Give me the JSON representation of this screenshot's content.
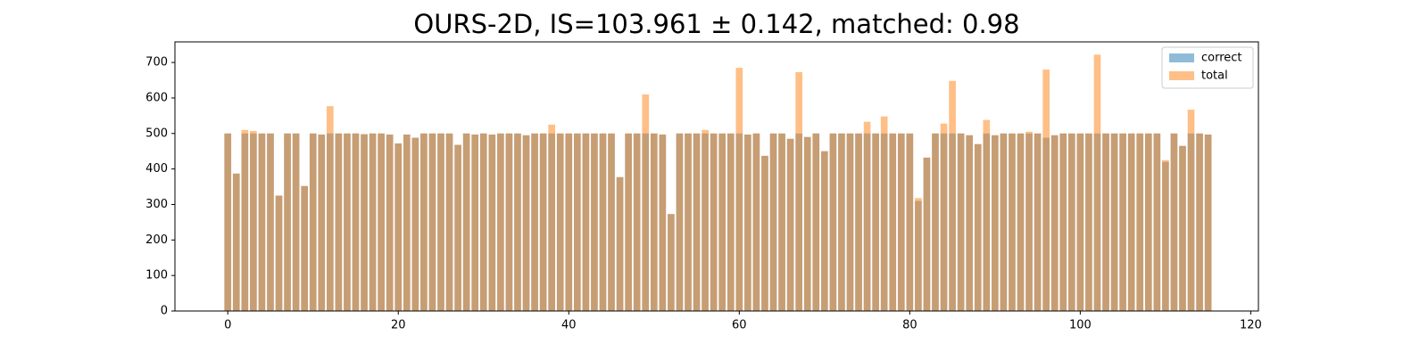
{
  "chart_data": {
    "type": "bar",
    "title": "OURS-2D, IS=103.961 ± 0.142, matched: 0.98",
    "x": [
      0,
      1,
      2,
      3,
      4,
      5,
      6,
      7,
      8,
      9,
      10,
      11,
      12,
      13,
      14,
      15,
      16,
      17,
      18,
      19,
      20,
      21,
      22,
      23,
      24,
      25,
      26,
      27,
      28,
      29,
      30,
      31,
      32,
      33,
      34,
      35,
      36,
      37,
      38,
      39,
      40,
      41,
      42,
      43,
      44,
      45,
      46,
      47,
      48,
      49,
      50,
      51,
      52,
      53,
      54,
      55,
      56,
      57,
      58,
      59,
      60,
      61,
      62,
      63,
      64,
      65,
      66,
      67,
      68,
      69,
      70,
      71,
      72,
      73,
      74,
      75,
      76,
      77,
      78,
      79,
      80,
      81,
      82,
      83,
      84,
      85,
      86,
      87,
      88,
      89,
      90,
      91,
      92,
      93,
      94,
      95,
      96,
      97,
      98,
      99,
      100,
      101,
      102,
      103,
      104,
      105,
      106,
      107,
      108,
      109,
      110,
      111,
      112,
      113,
      114,
      115
    ],
    "series": [
      {
        "name": "correct",
        "color": "#1f77b4",
        "values": [
          500,
          387,
          500,
          500,
          500,
          500,
          325,
          500,
          500,
          352,
          500,
          497,
          500,
          500,
          500,
          500,
          498,
          500,
          500,
          497,
          472,
          497,
          488,
          500,
          500,
          500,
          500,
          468,
          500,
          497,
          500,
          497,
          500,
          500,
          500,
          495,
          500,
          500,
          500,
          500,
          500,
          500,
          500,
          500,
          500,
          500,
          377,
          500,
          500,
          500,
          500,
          497,
          273,
          500,
          500,
          500,
          500,
          500,
          500,
          500,
          500,
          497,
          500,
          437,
          500,
          500,
          485,
          500,
          490,
          500,
          450,
          500,
          500,
          500,
          500,
          500,
          500,
          500,
          500,
          500,
          500,
          310,
          432,
          500,
          500,
          500,
          500,
          495,
          470,
          500,
          495,
          500,
          500,
          500,
          500,
          500,
          488,
          495,
          500,
          500,
          500,
          500,
          500,
          500,
          500,
          500,
          500,
          500,
          500,
          500,
          420,
          500,
          465,
          500,
          500,
          497
        ]
      },
      {
        "name": "total",
        "color": "#ff7f0e",
        "values": [
          500,
          387,
          510,
          507,
          500,
          500,
          325,
          500,
          500,
          352,
          500,
          497,
          577,
          500,
          500,
          500,
          498,
          500,
          500,
          497,
          472,
          497,
          488,
          500,
          500,
          500,
          500,
          468,
          500,
          497,
          500,
          497,
          500,
          500,
          500,
          495,
          500,
          500,
          525,
          500,
          500,
          500,
          500,
          500,
          500,
          500,
          377,
          500,
          500,
          610,
          500,
          497,
          273,
          500,
          500,
          500,
          510,
          500,
          500,
          500,
          685,
          497,
          500,
          437,
          500,
          500,
          485,
          673,
          490,
          500,
          450,
          500,
          500,
          500,
          500,
          533,
          500,
          548,
          500,
          500,
          500,
          318,
          432,
          500,
          528,
          648,
          500,
          495,
          470,
          538,
          495,
          500,
          500,
          500,
          505,
          500,
          680,
          495,
          500,
          500,
          500,
          500,
          722,
          500,
          500,
          500,
          500,
          500,
          500,
          500,
          425,
          500,
          465,
          567,
          500,
          497
        ]
      }
    ],
    "alpha": 0.5,
    "bar_width": 0.8,
    "xlim": [
      -6.2,
      120.9
    ],
    "xticks": [
      0,
      20,
      40,
      60,
      80,
      100,
      120
    ],
    "ylim": [
      0,
      758
    ],
    "yticks": [
      0,
      100,
      200,
      300,
      400,
      500,
      600,
      700
    ],
    "legend": "upper right"
  }
}
